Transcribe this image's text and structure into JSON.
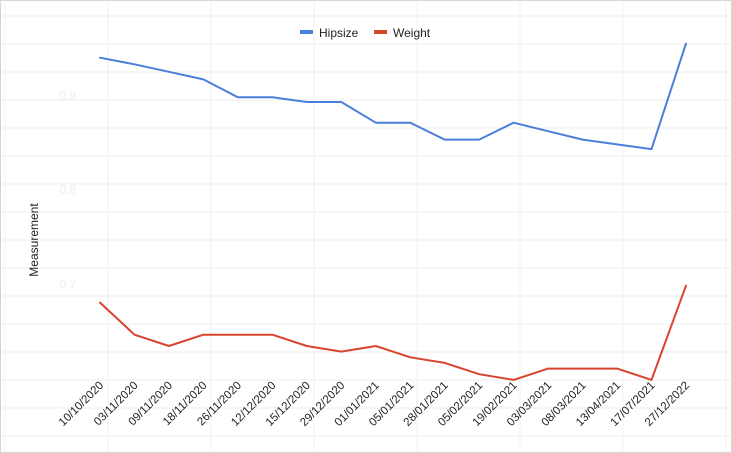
{
  "chart_data": {
    "type": "line",
    "title": "",
    "xlabel": "",
    "ylabel": "Measurement",
    "categories": [
      "10/10/2020",
      "03/11/2020",
      "09/11/2020",
      "18/11/2020",
      "26/11/2020",
      "12/12/2020",
      "15/12/2020",
      "29/12/2020",
      "01/01/2021",
      "05/01/2021",
      "28/01/2021",
      "05/02/2021",
      "19/02/2021",
      "03/03/2021",
      "08/03/2021",
      "13/04/2021",
      "17/07/2021",
      "27/12/2022"
    ],
    "yticks": [
      {
        "value": 0.7,
        "label": "0.7"
      },
      {
        "value": 0.8,
        "label": "0.8"
      },
      {
        "value": 0.9,
        "label": "0.9"
      }
    ],
    "ylim": [
      0.6,
      0.98
    ],
    "legend_position": "top-center",
    "grid": true,
    "series": [
      {
        "name": "Hipsize",
        "color": "#4a7fdc",
        "values": [
          0.94,
          0.933,
          0.925,
          0.917,
          0.898,
          0.898,
          0.893,
          0.893,
          0.871,
          0.871,
          0.853,
          0.853,
          0.871,
          0.862,
          0.853,
          0.848,
          0.843,
          0.955
        ]
      },
      {
        "name": "Weight",
        "color": "#d9442e",
        "values": [
          0.68,
          0.646,
          0.634,
          0.646,
          0.646,
          0.646,
          0.634,
          0.628,
          0.634,
          0.622,
          0.616,
          0.604,
          0.598,
          0.61,
          0.61,
          0.61,
          0.598,
          0.698
        ]
      }
    ]
  }
}
